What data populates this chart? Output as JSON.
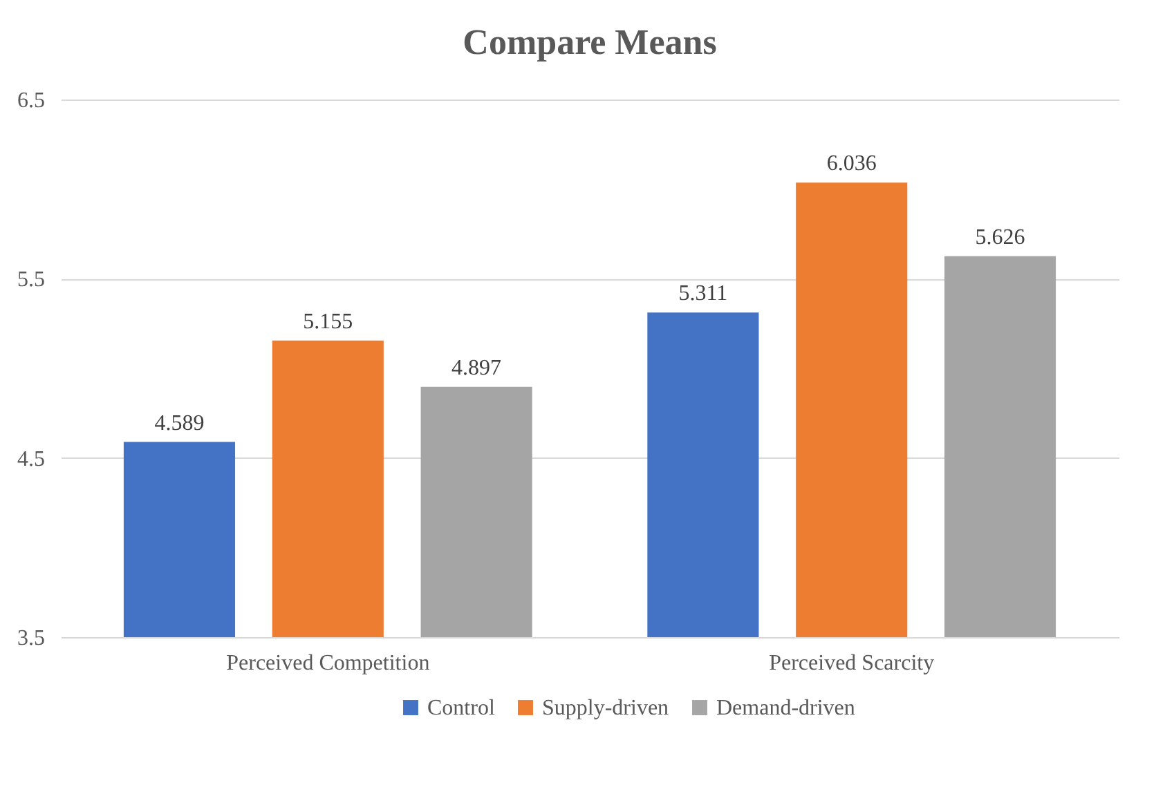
{
  "chart_data": {
    "type": "bar",
    "title": "Compare Means",
    "categories": [
      "Perceived Competition",
      "Perceived Scarcity"
    ],
    "series": [
      {
        "name": "Control",
        "color": "#4472c4",
        "values": [
          4.589,
          5.311
        ]
      },
      {
        "name": "Supply-driven",
        "color": "#ed7d31",
        "values": [
          5.155,
          6.036
        ]
      },
      {
        "name": "Demand-driven",
        "color": "#a5a5a5",
        "values": [
          4.897,
          5.626
        ]
      }
    ],
    "ylim": [
      3.5,
      6.5
    ],
    "yticks": [
      3.5,
      4.5,
      5.5,
      6.5
    ],
    "grid": "y",
    "legend": "bottom",
    "data_labels": true
  }
}
